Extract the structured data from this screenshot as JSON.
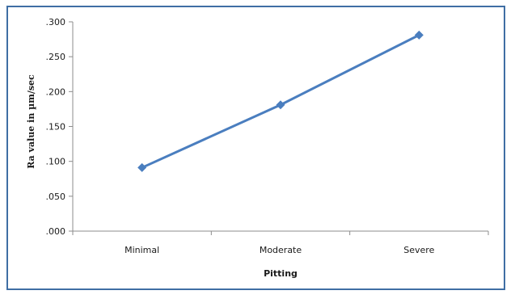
{
  "chart_data": {
    "type": "line",
    "title": "",
    "xlabel": "Pitting",
    "ylabel": "Ra value in µm/sec",
    "categories": [
      "Minimal",
      "Moderate",
      "Severe"
    ],
    "series": [
      {
        "name": "",
        "values": [
          0.091,
          0.181,
          0.281
        ],
        "color": "#4a7ebf",
        "marker": "diamond"
      }
    ],
    "ylim": [
      0,
      0.3
    ],
    "yticks": [
      {
        "value": 0.3,
        "label": ".300"
      },
      {
        "value": 0.25,
        "label": ".250"
      },
      {
        "value": 0.2,
        "label": ".200"
      },
      {
        "value": 0.15,
        "label": ".150"
      },
      {
        "value": 0.1,
        "label": ".100"
      },
      {
        "value": 0.05,
        "label": ".050"
      },
      {
        "value": 0.0,
        "label": ".000"
      }
    ],
    "grid": false,
    "legend": "none",
    "frame_color": "#3f6ea4",
    "axis_color": "#8c8c8c"
  }
}
